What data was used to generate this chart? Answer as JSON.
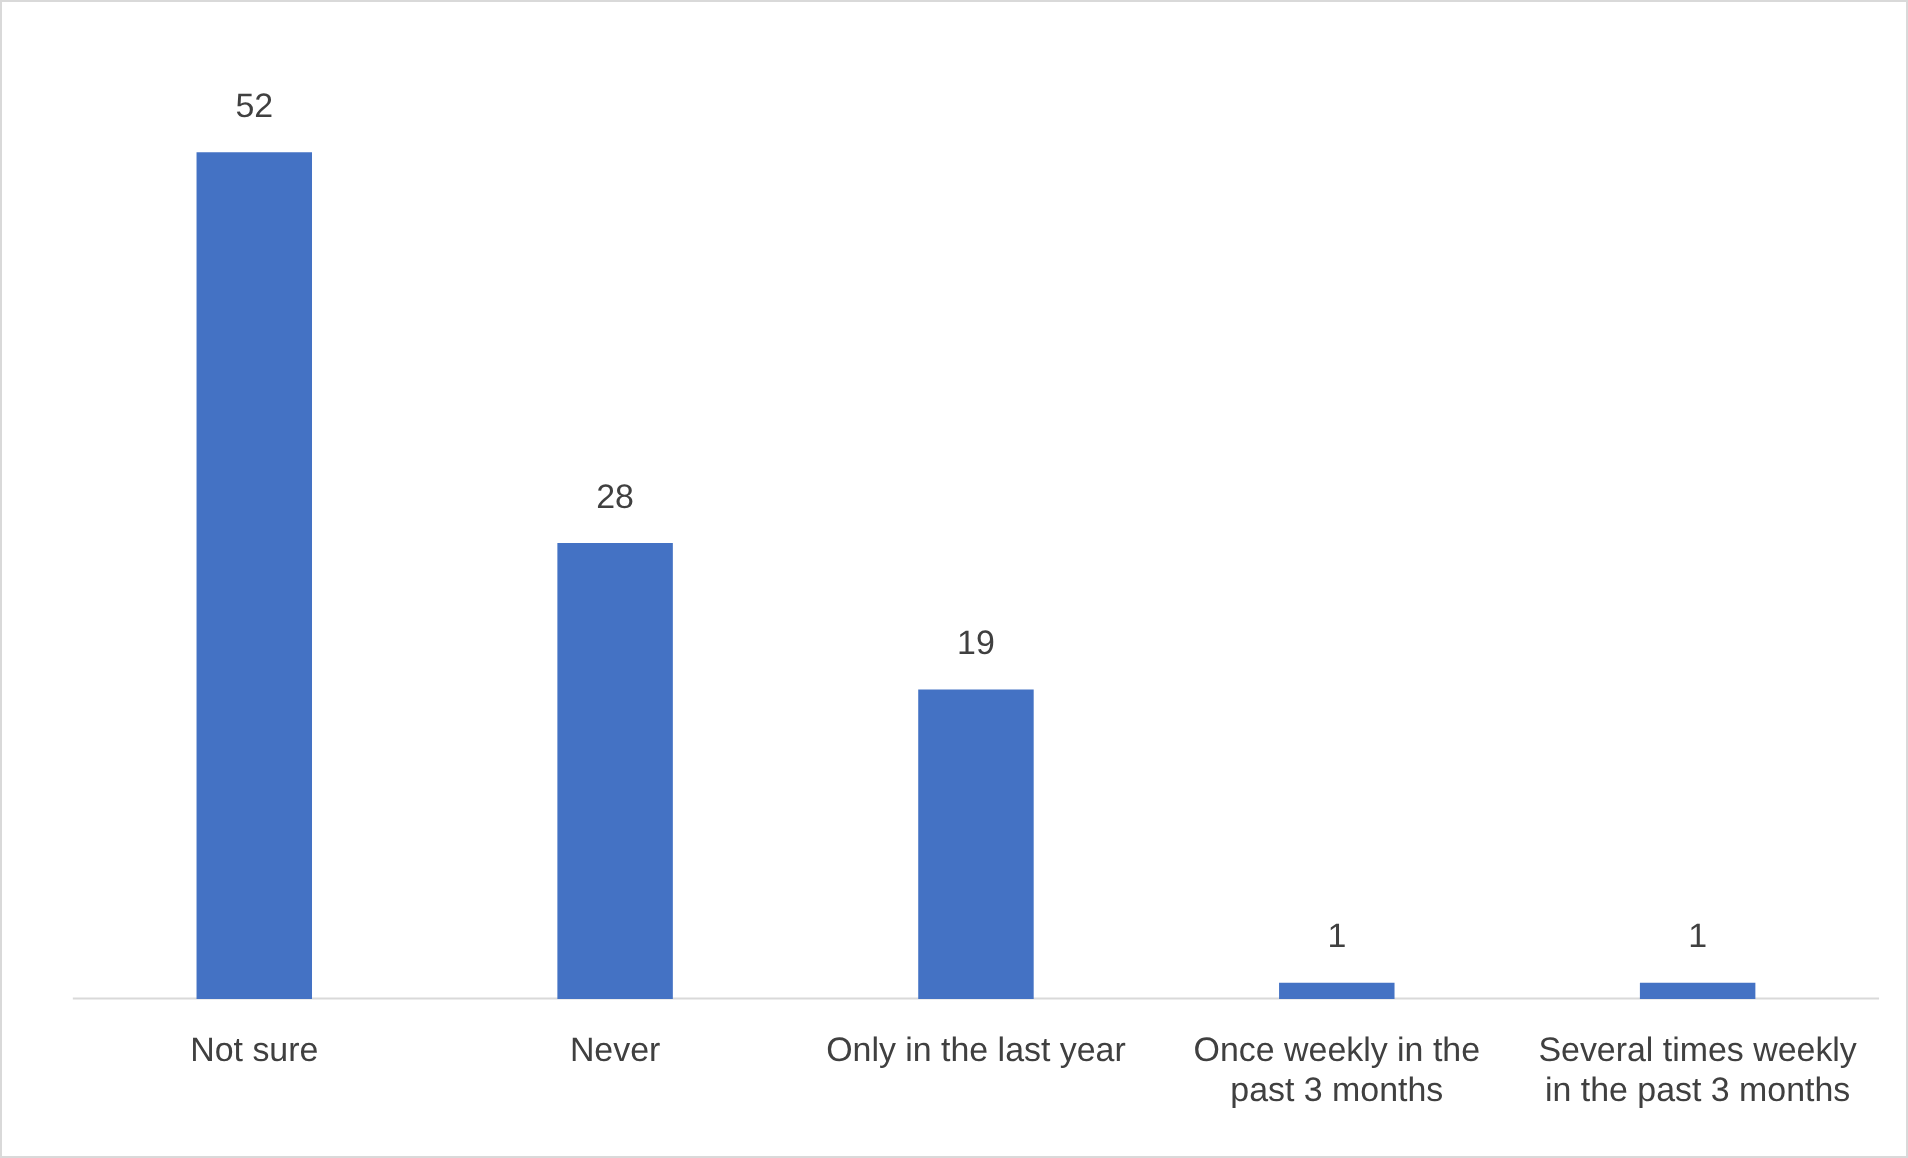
{
  "chart_data": {
    "type": "bar",
    "categories": [
      "Not sure",
      "Never",
      "Only in the last year",
      "Once weekly in the past 3 months",
      "Several times weekly in the past 3 months"
    ],
    "values": [
      52,
      28,
      19,
      1,
      1
    ],
    "color": "#4472c4",
    "data_labels": true,
    "grid": false,
    "legend": false
  }
}
